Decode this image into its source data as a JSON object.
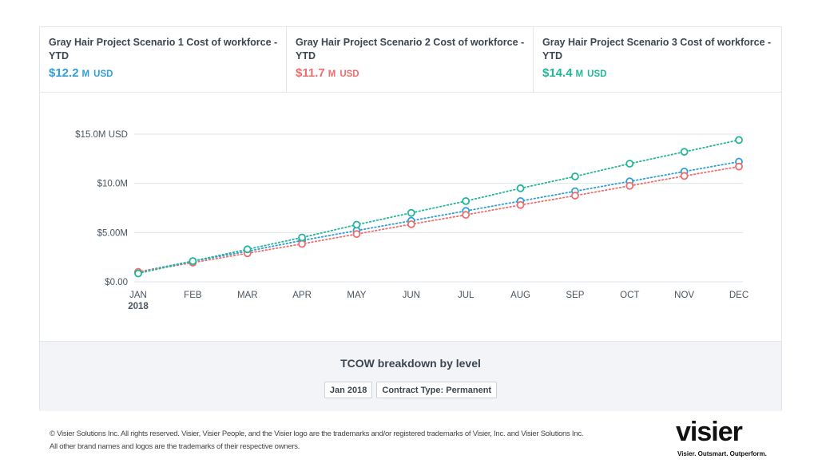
{
  "kpis": [
    {
      "title": "Gray Hair Project Scenario 1 Cost of workforce - YTD",
      "value": "$12.2",
      "unit": "M",
      "currency": "USD",
      "color": "#2f9fd8"
    },
    {
      "title": "Gray Hair Project Scenario 2 Cost of workforce - YTD",
      "value": "$11.7",
      "unit": "M",
      "currency": "USD",
      "color": "#ee6d6d"
    },
    {
      "title": "Gray Hair Project Scenario 3 Cost of workforce - YTD",
      "value": "$14.4",
      "unit": "M",
      "currency": "USD",
      "color": "#24b59a"
    }
  ],
  "chart_data": {
    "type": "line",
    "categories": [
      "JAN",
      "FEB",
      "MAR",
      "APR",
      "MAY",
      "JUN",
      "JUL",
      "AUG",
      "SEP",
      "OCT",
      "NOV",
      "DEC"
    ],
    "category_sublabels": {
      "JAN": "2018"
    },
    "y_ticks": [
      0,
      5,
      10,
      15
    ],
    "y_tick_labels": [
      "$0.00",
      "$5.00M",
      "$10.0M",
      "$15.0M USD"
    ],
    "ylim": [
      0,
      15
    ],
    "y_unit": "M USD",
    "grid": true,
    "line_style": "dotted",
    "series": [
      {
        "values": [
          1.0,
          2.1,
          3.1,
          4.2,
          5.2,
          6.2,
          7.2,
          8.2,
          9.2,
          10.2,
          11.2,
          12.2
        ],
        "color": "#2f9fd8"
      },
      {
        "values": [
          1.0,
          1.95,
          2.9,
          3.85,
          4.85,
          5.85,
          6.8,
          7.8,
          8.75,
          9.75,
          10.75,
          11.7
        ],
        "color": "#ee6d6d"
      },
      {
        "values": [
          0.85,
          2.1,
          3.3,
          4.5,
          5.8,
          7.0,
          8.2,
          9.5,
          10.7,
          12.0,
          13.2,
          14.4
        ],
        "color": "#24b59a"
      }
    ]
  },
  "breakdown": {
    "title": "TCOW breakdown by level",
    "chips": [
      "Jan 2018",
      "Contract Type: Permanent"
    ]
  },
  "footer": {
    "copyright_line1": "© Visier Solutions Inc. All rights reserved. Visier, Visier People, and the Visier logo are the trademarks and/or registered trademarks of Visier, Inc. and Visier Solutions Inc.",
    "copyright_line2": "All other brand names and logos are the trademarks of their respective owners.",
    "logo_word": "visier",
    "logo_tagline": "Visier. Outsmart. Outperform."
  }
}
